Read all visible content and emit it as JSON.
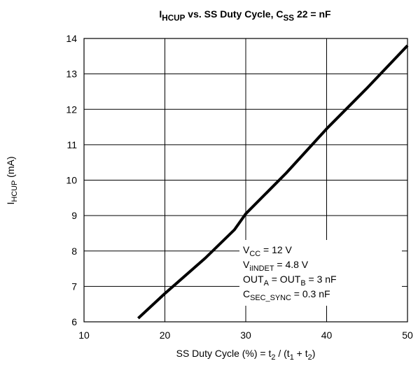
{
  "chart_data": {
    "type": "line",
    "title": [
      {
        "text": "I"
      },
      {
        "text": "HCUP",
        "sub": true
      },
      {
        "text": " vs. SS Duty Cycle, C"
      },
      {
        "text": "SS",
        "sub": true
      },
      {
        "text": " 22 = nF"
      }
    ],
    "x_label": [
      {
        "text": "SS Duty Cycle (%) = t"
      },
      {
        "text": "2",
        "sub": true
      },
      {
        "text": " / (t"
      },
      {
        "text": "1",
        "sub": true
      },
      {
        "text": " + t"
      },
      {
        "text": "2",
        "sub": true
      },
      {
        "text": ")"
      }
    ],
    "y_label": [
      {
        "text": "I"
      },
      {
        "text": "HCUP",
        "sub": true
      },
      {
        "text": " (mA)"
      }
    ],
    "annotations": [
      [
        {
          "text": "V"
        },
        {
          "text": "CC",
          "sub": true
        },
        {
          "text": " = 12 V"
        }
      ],
      [
        {
          "text": "V"
        },
        {
          "text": "iINDET",
          "sub": true
        },
        {
          "text": " = 4.8 V"
        }
      ],
      [
        {
          "text": "OUT"
        },
        {
          "text": "A",
          "sub": true
        },
        {
          "text": " = OUT"
        },
        {
          "text": "B",
          "sub": true
        },
        {
          "text": " = 3 nF"
        }
      ],
      [
        {
          "text": "C"
        },
        {
          "text": "SEC_SYNC",
          "sub": true
        },
        {
          "text": " = 0.3 nF"
        }
      ]
    ],
    "x": [
      16.7,
      20,
      25,
      28.6,
      30,
      35,
      40,
      45,
      50
    ],
    "series": [
      {
        "color": "#000000",
        "values": [
          6.1,
          6.8,
          7.8,
          8.6,
          9.05,
          10.2,
          11.45,
          12.6,
          13.8
        ]
      }
    ],
    "xlim": [
      10,
      50
    ],
    "xticks": [
      10,
      20,
      30,
      40,
      50
    ],
    "ylim": [
      6,
      14
    ],
    "yticks": [
      6,
      7,
      8,
      9,
      10,
      11,
      12,
      13,
      14
    ],
    "grid": true
  }
}
